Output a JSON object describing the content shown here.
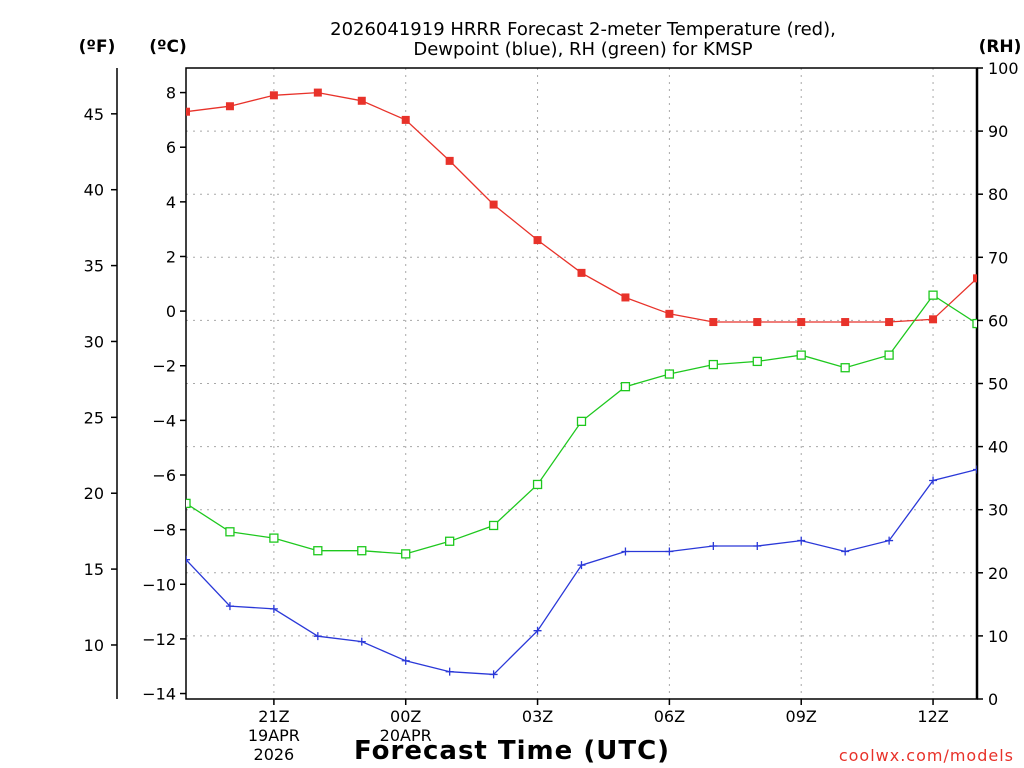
{
  "chart_data": {
    "type": "line",
    "title_line1": "2026041919 HRRR Forecast 2-meter Temperature (red),",
    "title_line2": "Dewpoint (blue), RH (green) for KMSP",
    "xlabel": "Forecast Time (UTC)",
    "credit": "coolwx.com/models",
    "units": {
      "fahrenheit": "(ºF)",
      "celsius": "(ºC)",
      "rh": "(RH)"
    },
    "x_hours": [
      19,
      20,
      21,
      22,
      23,
      24,
      25,
      26,
      27,
      28,
      29,
      30,
      31,
      32,
      33,
      34,
      35,
      36,
      37
    ],
    "x_range": [
      19,
      37
    ],
    "x_ticks": [
      {
        "hour": 21,
        "label": "21Z",
        "sub1": "19APR",
        "sub2": "2026"
      },
      {
        "hour": 24,
        "label": "00Z",
        "sub1": "20APR",
        "sub2": ""
      },
      {
        "hour": 27,
        "label": "03Z",
        "sub1": "",
        "sub2": ""
      },
      {
        "hour": 30,
        "label": "06Z",
        "sub1": "",
        "sub2": ""
      },
      {
        "hour": 33,
        "label": "09Z",
        "sub1": "",
        "sub2": ""
      },
      {
        "hour": 36,
        "label": "12Z",
        "sub1": "",
        "sub2": ""
      }
    ],
    "celsius_range": [
      -14.2,
      8.9
    ],
    "celsius_ticks": [
      8,
      6,
      4,
      2,
      0,
      -2,
      -4,
      -6,
      -8,
      -10,
      -12,
      -14
    ],
    "celsius_tick_labels": [
      "8",
      "6",
      "4",
      "2",
      "0",
      "−2",
      "−4",
      "−6",
      "−8",
      "−10",
      "−12",
      "−14"
    ],
    "fahrenheit_ticks": [
      45,
      40,
      35,
      30,
      25,
      20,
      15,
      10
    ],
    "fahrenheit_tick_labels": [
      "45",
      "40",
      "35",
      "30",
      "25",
      "20",
      "15",
      "10"
    ],
    "rh_range": [
      0,
      100
    ],
    "rh_ticks": [
      100,
      90,
      80,
      70,
      60,
      50,
      40,
      30,
      20,
      10,
      0
    ],
    "rh_tick_labels": [
      "100",
      "90",
      "80",
      "70",
      "60",
      "50",
      "40",
      "30",
      "20",
      "10",
      "0"
    ],
    "series": [
      {
        "name": "2-meter Temperature",
        "axis": "celsius",
        "color": "#e8322a",
        "marker": "filled-square",
        "values": [
          7.3,
          7.5,
          7.9,
          8.0,
          7.7,
          7.0,
          5.5,
          3.9,
          2.6,
          1.4,
          0.5,
          -0.1,
          -0.4,
          -0.4,
          -0.4,
          -0.4,
          -0.4,
          -0.3,
          1.2
        ]
      },
      {
        "name": "Dewpoint",
        "axis": "celsius",
        "color": "#2a38d8",
        "marker": "plus",
        "values": [
          -9.1,
          -10.8,
          -10.9,
          -11.9,
          -12.1,
          -12.8,
          -13.2,
          -13.3,
          -11.7,
          -9.3,
          -8.8,
          -8.8,
          -8.6,
          -8.6,
          -8.4,
          -8.8,
          -8.4,
          -6.2,
          -5.8
        ]
      },
      {
        "name": "RH",
        "axis": "rh",
        "color": "#1ec81e",
        "marker": "open-square",
        "values": [
          31,
          26.5,
          25.5,
          23.5,
          23.5,
          23,
          25,
          27.5,
          34,
          44,
          49.5,
          51.5,
          53,
          53.5,
          54.5,
          52.5,
          54.5,
          64,
          59.5
        ]
      }
    ]
  }
}
